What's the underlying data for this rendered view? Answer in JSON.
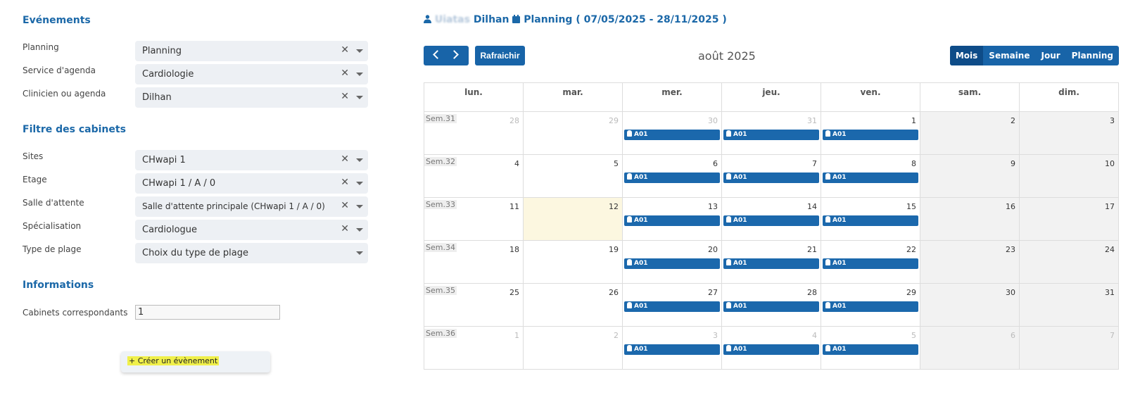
{
  "sections": {
    "events_title": "Evénements",
    "filters_title": "Filtre des cabinets",
    "info_title": "Informations"
  },
  "fields": [
    {
      "label": "Planning",
      "value": "Planning"
    },
    {
      "label": "Service d'agenda",
      "value": "Cardiologie"
    },
    {
      "label": "Clinicien ou agenda",
      "value": "Dilhan"
    },
    {
      "label": "Sites",
      "value": "CHwapi 1"
    },
    {
      "label": "Etage",
      "value": "CHwapi 1 / A / 0"
    },
    {
      "label": "Salle d'attente",
      "value": "Salle d'attente principale (CHwapi 1 / A / 0)"
    },
    {
      "label": "Spécialisation",
      "value": "Cardiologue"
    },
    {
      "label": "Type de plage",
      "value": "Choix du type de plage"
    }
  ],
  "clear_glyph": "✕",
  "info": {
    "cabinets_label": "Cabinets correspondants",
    "cabinets_value": "1"
  },
  "create_button": "+ Créer un évènement",
  "header": {
    "name_blurred": "Uiatas",
    "name": "Dilhan",
    "planning_label": "Planning",
    "date_range": "( 07/05/2025 - 28/11/2025 )"
  },
  "toolbar": {
    "refresh": "Rafraichir",
    "month_title": "août 2025",
    "views": [
      "Mois",
      "Semaine",
      "Jour",
      "Planning"
    ],
    "active_view": "Mois"
  },
  "calendar": {
    "weekdays": [
      "lun.",
      "mar.",
      "mer.",
      "jeu.",
      "ven.",
      "sam.",
      "dim."
    ],
    "event_label": "A01",
    "weeks": [
      {
        "label": "Sem.31",
        "days": [
          {
            "d": "28",
            "o": true
          },
          {
            "d": "29",
            "o": true
          },
          {
            "d": "30",
            "o": true,
            "e": true
          },
          {
            "d": "31",
            "o": true,
            "e": true
          },
          {
            "d": "1",
            "e": true
          },
          {
            "d": "2"
          },
          {
            "d": "3"
          }
        ]
      },
      {
        "label": "Sem.32",
        "days": [
          {
            "d": "4"
          },
          {
            "d": "5"
          },
          {
            "d": "6",
            "e": true
          },
          {
            "d": "7",
            "e": true
          },
          {
            "d": "8",
            "e": true
          },
          {
            "d": "9"
          },
          {
            "d": "10"
          }
        ]
      },
      {
        "label": "Sem.33",
        "days": [
          {
            "d": "11"
          },
          {
            "d": "12",
            "t": true
          },
          {
            "d": "13",
            "e": true
          },
          {
            "d": "14",
            "e": true
          },
          {
            "d": "15",
            "e": true
          },
          {
            "d": "16"
          },
          {
            "d": "17"
          }
        ]
      },
      {
        "label": "Sem.34",
        "days": [
          {
            "d": "18"
          },
          {
            "d": "19"
          },
          {
            "d": "20",
            "e": true
          },
          {
            "d": "21",
            "e": true
          },
          {
            "d": "22",
            "e": true
          },
          {
            "d": "23"
          },
          {
            "d": "24"
          }
        ]
      },
      {
        "label": "Sem.35",
        "days": [
          {
            "d": "25"
          },
          {
            "d": "26"
          },
          {
            "d": "27",
            "e": true
          },
          {
            "d": "28",
            "e": true
          },
          {
            "d": "29",
            "e": true
          },
          {
            "d": "30"
          },
          {
            "d": "31"
          }
        ]
      },
      {
        "label": "Sem.36",
        "days": [
          {
            "d": "1",
            "o": true
          },
          {
            "d": "2",
            "o": true
          },
          {
            "d": "3",
            "o": true,
            "e": true
          },
          {
            "d": "4",
            "o": true,
            "e": true
          },
          {
            "d": "5",
            "o": true,
            "e": true
          },
          {
            "d": "6",
            "o": true
          },
          {
            "d": "7",
            "o": true
          }
        ]
      }
    ]
  }
}
